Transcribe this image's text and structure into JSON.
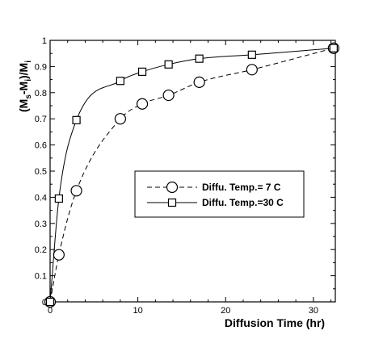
{
  "chart_data": {
    "type": "line",
    "xlabel": "Diffusion Time (hr)",
    "ylabel_parts": [
      "(M",
      "s",
      "-M",
      "i",
      ")/M",
      "i"
    ],
    "xlim": [
      0,
      32.5
    ],
    "ylim": [
      0,
      1
    ],
    "xticks": [
      0,
      10,
      20,
      30
    ],
    "yticks": [
      0,
      0.1,
      0.2,
      0.3,
      0.4,
      0.5,
      0.6,
      0.7,
      0.8,
      0.9,
      1
    ],
    "ytick_labels": [
      "0",
      "0.1",
      "0.2",
      "0.3",
      "0.4",
      "0.5",
      "0.6",
      "0.7",
      "0.8",
      "0.9",
      "1"
    ],
    "xtick_labels": [
      "0",
      "10",
      "20",
      "30"
    ],
    "legend_placement": "center-right",
    "series": [
      {
        "name": "Diffu. Temp.=  7 C",
        "marker": "circle",
        "line_style": "dashed",
        "x": [
          0,
          1,
          3,
          8,
          10.5,
          13.5,
          17,
          23,
          32.3
        ],
        "y": [
          0,
          0.18,
          0.425,
          0.7,
          0.757,
          0.79,
          0.84,
          0.888,
          0.97
        ]
      },
      {
        "name": "Diffu. Temp.=30 C",
        "marker": "square",
        "line_style": "solid",
        "x": [
          0,
          1,
          3,
          8,
          10.5,
          13.5,
          17,
          23,
          32.3
        ],
        "y": [
          0,
          0.395,
          0.695,
          0.845,
          0.88,
          0.908,
          0.93,
          0.945,
          0.97
        ]
      }
    ]
  }
}
